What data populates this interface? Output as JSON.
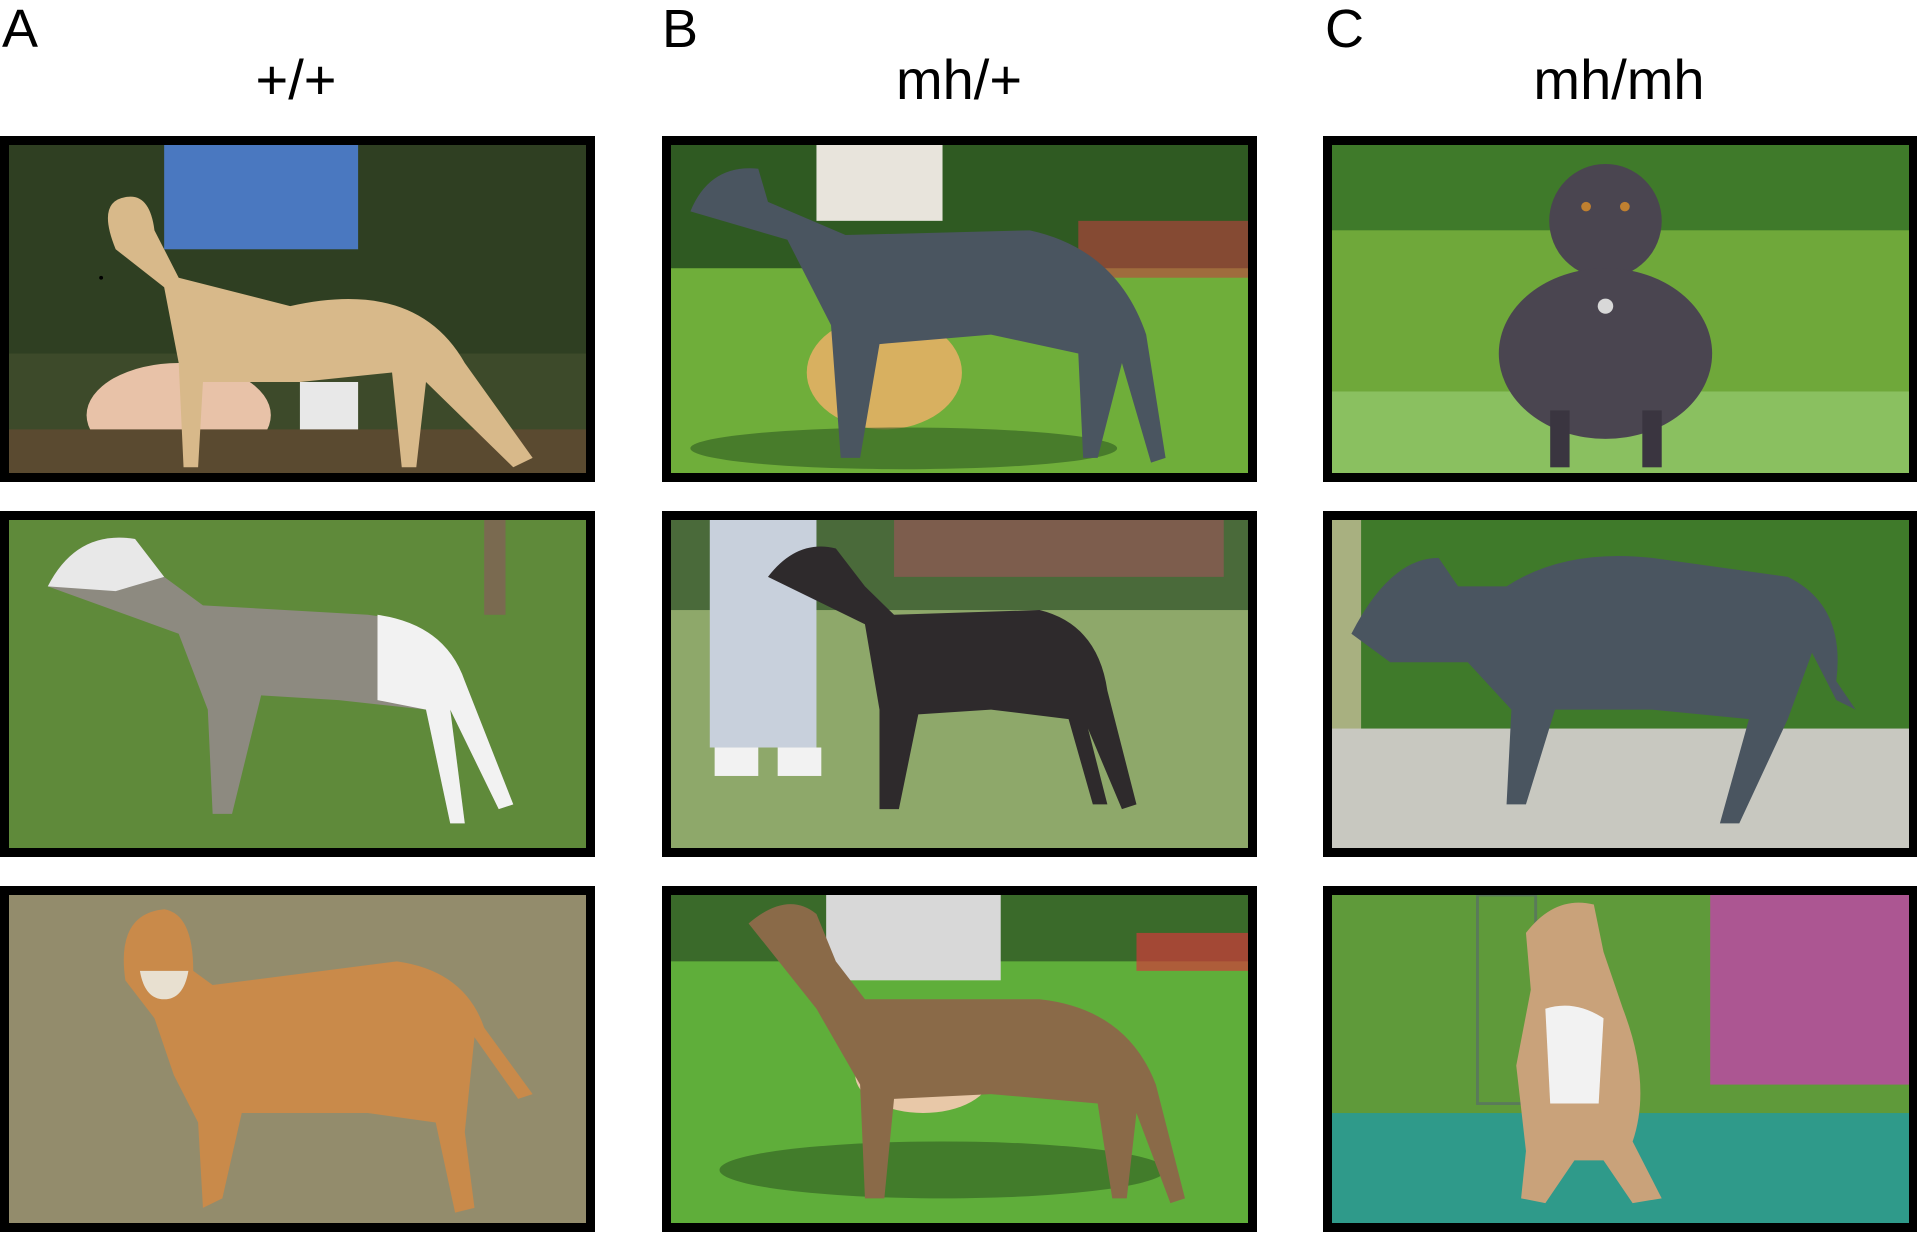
{
  "panels": [
    {
      "letter": "A",
      "genotype": "+/+"
    },
    {
      "letter": "B",
      "genotype": "mh/+"
    },
    {
      "letter": "C",
      "genotype": "mh/mh"
    }
  ],
  "colors": {
    "border": "#000000",
    "grass": "#6f9a3f",
    "dark_grass": "#3f6a2a",
    "fawn": "#d8b98a",
    "blue_gray": "#4a5560",
    "brindle": "#8a6a48",
    "black_dog": "#2e2a2c",
    "red_dog": "#c98a4a",
    "white": "#f2f2f2",
    "teal_mat": "#2f9a8a",
    "magenta_flowers": "#c53fb0"
  }
}
